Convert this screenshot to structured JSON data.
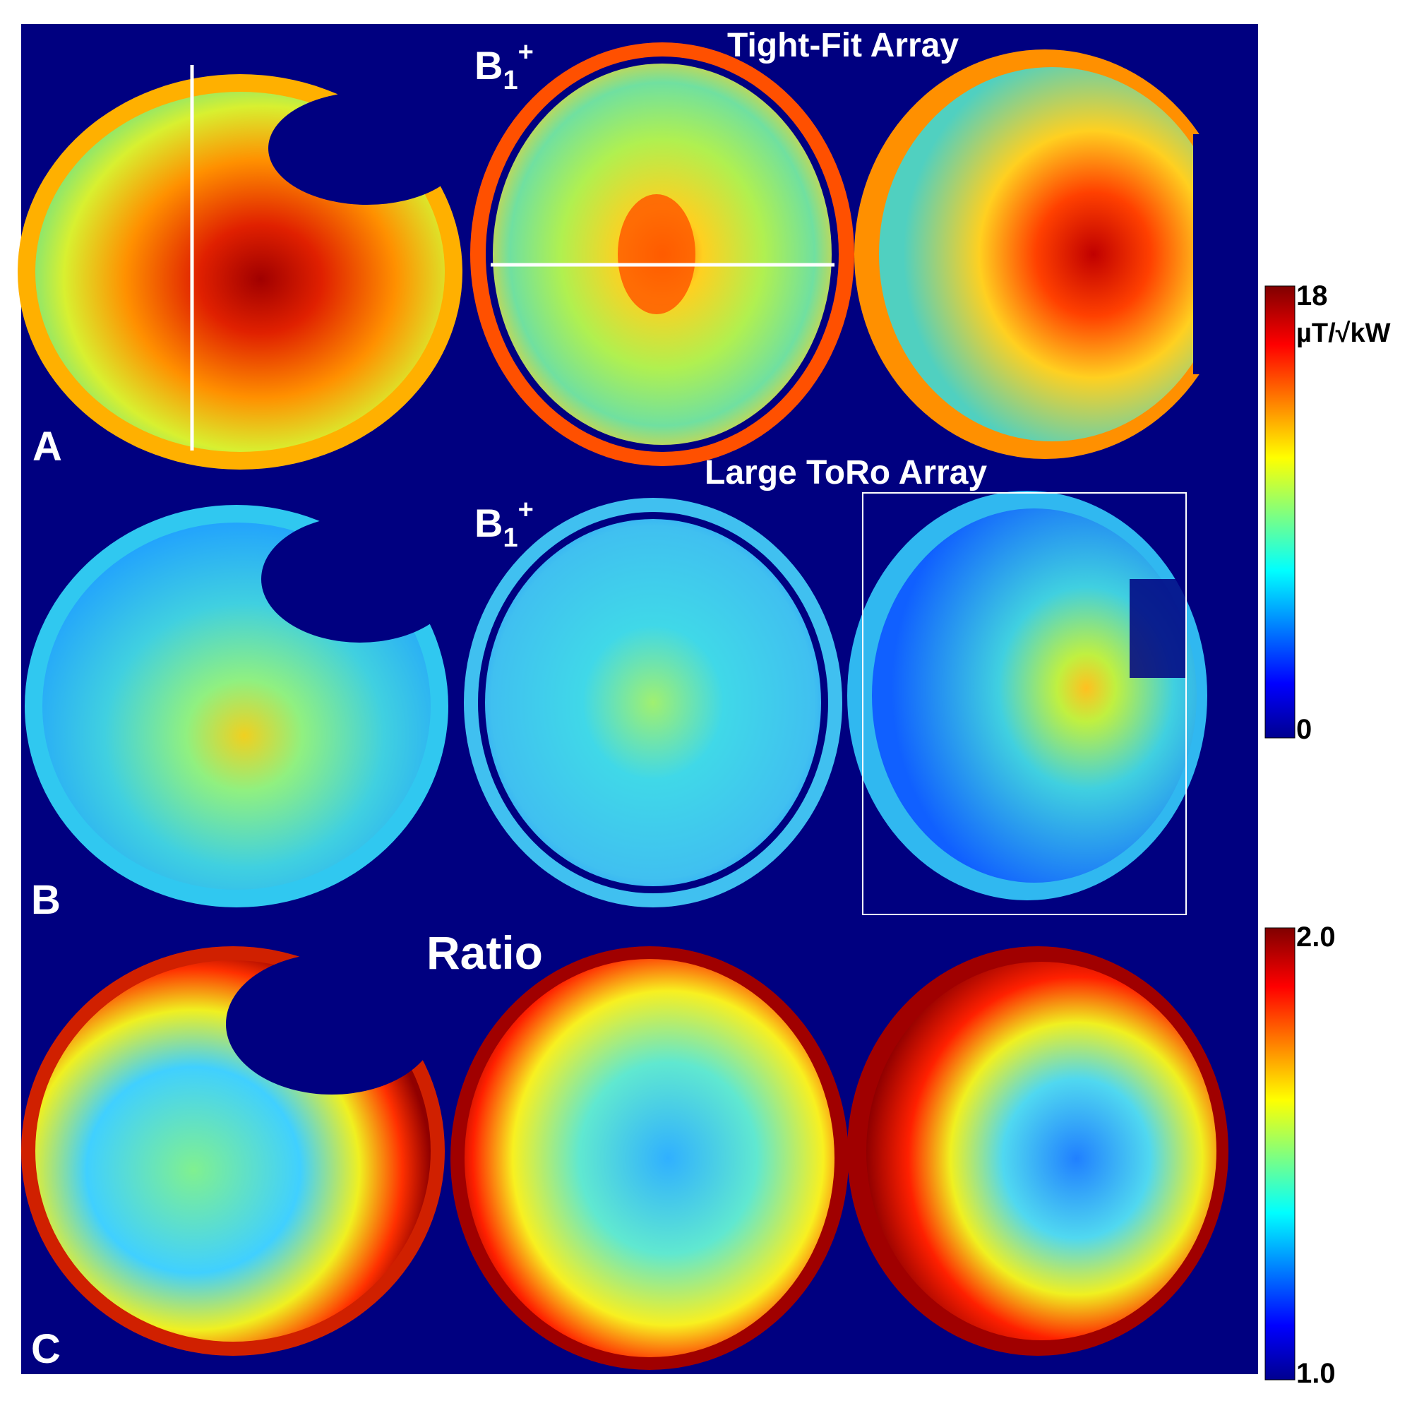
{
  "figure": {
    "background_color": "#000080",
    "panel_labels": [
      "A",
      "B",
      "C"
    ],
    "row_titles": {
      "tight_fit": "Tight-Fit Array",
      "large_toro": "Large ToRo Array",
      "ratio": "Ratio"
    },
    "b1_label": {
      "base": "B",
      "sub": "1",
      "sup": "+"
    }
  },
  "colorbars": {
    "b1": {
      "max_label": "18",
      "unit_label": "µT/√kW",
      "min_label": "0",
      "max": 18,
      "min": 0
    },
    "ratio": {
      "max_label": "2.0",
      "min_label": "1.0",
      "max": 2.0,
      "min": 1.0
    }
  },
  "colormap": {
    "name": "jet",
    "stops": [
      "#00008f",
      "#0000ff",
      "#00ffff",
      "#ffff00",
      "#ff0000",
      "#800000"
    ]
  }
}
